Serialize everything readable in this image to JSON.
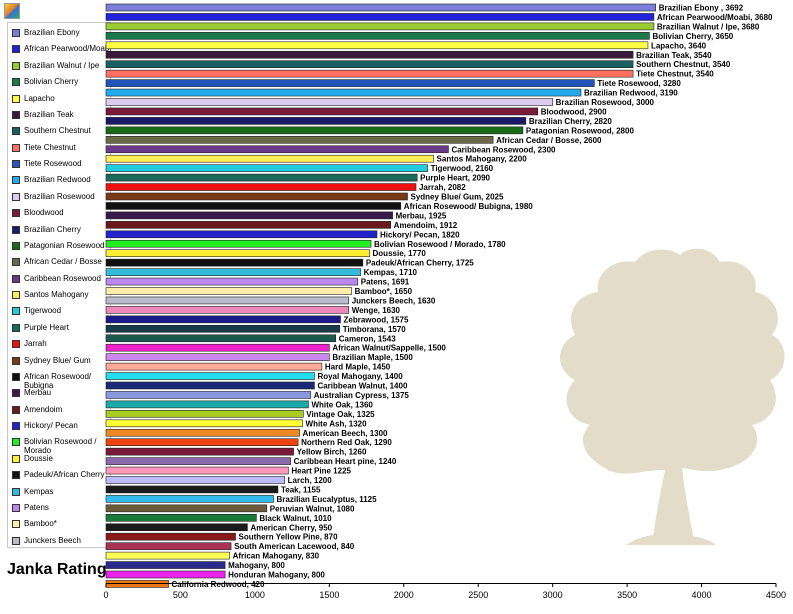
{
  "app": {
    "icon": "chart-app-icon"
  },
  "chart_data": {
    "type": "bar",
    "orientation": "horizontal",
    "title": "Janka Rating",
    "xlim": [
      0,
      4500
    ],
    "x_ticks": [
      0,
      500,
      1000,
      1500,
      2000,
      2500,
      3000,
      3500,
      4000,
      4500
    ],
    "grid": false,
    "legend_position": "left",
    "bars": [
      {
        "name": "Brazilian Ebony",
        "label": "Brazilian Ebony , 3692",
        "value": 3692,
        "color": "#7b7fd8"
      },
      {
        "name": "African Pearwood/Moabi",
        "label": "African Pearwood/Moabi, 3680",
        "value": 3680,
        "color": "#2222dd"
      },
      {
        "name": "Brazilian Walnut / Ipe",
        "label": "Brazilian Walnut / Ipe, 3680",
        "value": 3680,
        "color": "#99cc33"
      },
      {
        "name": "Bolivian Cherry",
        "label": "Bolivian Cherry, 3650",
        "value": 3650,
        "color": "#1a7a4a"
      },
      {
        "name": "Lapacho",
        "label": "Lapacho, 3640",
        "value": 3640,
        "color": "#ffff44"
      },
      {
        "name": "Brazilian Teak",
        "label": "Brazilian Teak, 3540",
        "value": 3540,
        "color": "#3a1a3a"
      },
      {
        "name": "Southern Chestnut",
        "label": "Southern Chestnut, 3540",
        "value": 3540,
        "color": "#1a6060"
      },
      {
        "name": "Tiete Chestnut",
        "label": "Tiete Chestnut, 3540",
        "value": 3540,
        "color": "#ff7060"
      },
      {
        "name": "Tiete Rosewood",
        "label": "Tiete Rosewood, 3280",
        "value": 3280,
        "color": "#2255bb"
      },
      {
        "name": "Brazilian Redwood",
        "label": "Brazilian Redwood, 3190",
        "value": 3190,
        "color": "#22aaee"
      },
      {
        "name": "Brazilian Rosewood",
        "label": "Brazilian Rosewood, 3000",
        "value": 3000,
        "color": "#ddccee"
      },
      {
        "name": "Bloodwood",
        "label": "Bloodwood, 2900",
        "value": 2900,
        "color": "#7a1a3a"
      },
      {
        "name": "Brazilian Cherry",
        "label": "Brazilian Cherry, 2820",
        "value": 2820,
        "color": "#1a1a6a"
      },
      {
        "name": "Patagonian Rosewood",
        "label": "Patagonian Rosewood, 2800",
        "value": 2800,
        "color": "#1a6a1a"
      },
      {
        "name": "African Cedar / Bosse",
        "label": "African Cedar / Bosse, 2600",
        "value": 2600,
        "color": "#6a6a4a"
      },
      {
        "name": "Caribbean Rosewood",
        "label": "Caribbean Rosewood, 2300",
        "value": 2300,
        "color": "#6a3a8a"
      },
      {
        "name": "Santos Mahogany",
        "label": "Santos Mahogany, 2200",
        "value": 2200,
        "color": "#ffee55"
      },
      {
        "name": "Tigerwood",
        "label": "Tigerwood, 2160",
        "value": 2160,
        "color": "#22ccdd"
      },
      {
        "name": "Purple Heart",
        "label": "Purple Heart, 2090",
        "value": 2090,
        "color": "#1a6a5a"
      },
      {
        "name": "Jarrah",
        "label": "Jarrah, 2082",
        "value": 2082,
        "color": "#ee1111"
      },
      {
        "name": "Sydney Blue/ Gum",
        "label": "Sydney Blue/ Gum, 2025",
        "value": 2025,
        "color": "#7a3a1a"
      },
      {
        "name": "African Rosewood/ Bubigna",
        "label": "African Rosewood/ Bubigna, 1980",
        "value": 1980,
        "color": "#111111"
      },
      {
        "name": "Merbau",
        "label": "Merbau, 1925",
        "value": 1925,
        "color": "#3a1a4a"
      },
      {
        "name": "Amendoim",
        "label": "Amendoim, 1912",
        "value": 1912,
        "color": "#6a1a1a"
      },
      {
        "name": "Hickory/ Pecan",
        "label": "Hickory/ Pecan, 1820",
        "value": 1820,
        "color": "#2222cc"
      },
      {
        "name": "Bolivian Rosewood / Morado",
        "label": "Bolivian Rosewood / Morado, 1780",
        "value": 1780,
        "color": "#22ee22"
      },
      {
        "name": "Doussie",
        "label": "Doussie, 1770",
        "value": 1770,
        "color": "#ffee33"
      },
      {
        "name": "Padeuk/African Cherry",
        "label": "Padeuk/African Cherry, 1725",
        "value": 1725,
        "color": "#111111"
      },
      {
        "name": "Kempas",
        "label": "Kempas, 1710",
        "value": 1710,
        "color": "#33bbdd"
      },
      {
        "name": "Patens",
        "label": "Patens, 1691",
        "value": 1691,
        "color": "#bb88ee"
      },
      {
        "name": "Bamboo*",
        "label": "Bamboo*, 1650",
        "value": 1650,
        "color": "#ffeeaa"
      },
      {
        "name": "Junckers Beech",
        "label": "Junckers Beech, 1630",
        "value": 1630,
        "color": "#bbbbcc"
      },
      {
        "name": "Wenge",
        "label": "Wenge, 1630",
        "value": 1630,
        "color": "#ee88bb"
      },
      {
        "name": "Zebrawood",
        "label": "Zebrawood, 1575",
        "value": 1575,
        "color": "#1a1a8a"
      },
      {
        "name": "Timborana",
        "label": "Timborana, 1570",
        "value": 1570,
        "color": "#1a3a4a"
      },
      {
        "name": "Cameron",
        "label": "Cameron, 1543",
        "value": 1543,
        "color": "#1a5a4a"
      },
      {
        "name": "African Walnut/Sappelle",
        "label": "African Walnut/Sappelle, 1500",
        "value": 1500,
        "color": "#ee22cc"
      },
      {
        "name": "Brazilian Maple",
        "label": "Brazilian Maple, 1500",
        "value": 1500,
        "color": "#cc88ee"
      },
      {
        "name": "Hard Maple",
        "label": "Hard Maple, 1450",
        "value": 1450,
        "color": "#ffaa99"
      },
      {
        "name": "Royal Mahogany",
        "label": "Royal Mahogany, 1400",
        "value": 1400,
        "color": "#22ddee"
      },
      {
        "name": "Caribbean Walnut",
        "label": "Caribbean Walnut, 1400",
        "value": 1400,
        "color": "#1a2a7a"
      },
      {
        "name": "Australian Cypress",
        "label": "Australian Cypress, 1375",
        "value": 1375,
        "color": "#8899dd"
      },
      {
        "name": "White Oak",
        "label": "White Oak, 1360",
        "value": 1360,
        "color": "#1aaaaa"
      },
      {
        "name": "Vintage Oak",
        "label": "Vintage Oak, 1325",
        "value": 1325,
        "color": "#aacc22"
      },
      {
        "name": "White Ash",
        "label": "White Ash, 1320",
        "value": 1320,
        "color": "#ffff33"
      },
      {
        "name": "American Beech",
        "label": "American Beech, 1300",
        "value": 1300,
        "color": "#ee8822"
      },
      {
        "name": "Northern Red Oak",
        "label": "Northern Red Oak, 1290",
        "value": 1290,
        "color": "#ee4411"
      },
      {
        "name": "Yellow Birch",
        "label": "Yellow Birch, 1260",
        "value": 1260,
        "color": "#7a1a3a"
      },
      {
        "name": "Caribbean Heart pine",
        "label": "Caribbean Heart pine, 1240",
        "value": 1240,
        "color": "#8a6aaa"
      },
      {
        "name": "Heart Pine",
        "label": "Heart Pine 1225",
        "value": 1225,
        "color": "#ff99bb"
      },
      {
        "name": "Larch",
        "label": "Larch, 1200",
        "value": 1200,
        "color": "#bbbbff"
      },
      {
        "name": "Teak",
        "label": "Teak, 1155",
        "value": 1155,
        "color": "#1a1a1a"
      },
      {
        "name": "Brazilian Eucalyptus",
        "label": "Brazilian Eucalyptus, 1125",
        "value": 1125,
        "color": "#33bbee"
      },
      {
        "name": "Peruvian Walnut",
        "label": "Peruvian Walnut, 1080",
        "value": 1080,
        "color": "#6a5a3a"
      },
      {
        "name": "Black Walnut",
        "label": "Black Walnut, 1010",
        "value": 1010,
        "color": "#1a7a3a"
      },
      {
        "name": "American Cherry",
        "label": "American Cherry, 950",
        "value": 950,
        "color": "#1a1a1a"
      },
      {
        "name": "Southern Yellow Pine",
        "label": "Southern Yellow Pine, 870",
        "value": 870,
        "color": "#8a1a1a"
      },
      {
        "name": "South American Lacewood",
        "label": "South American Lacewood, 840",
        "value": 840,
        "color": "#aa3355"
      },
      {
        "name": "African Mahogany",
        "label": "African Mahogany, 830",
        "value": 830,
        "color": "#ffff55"
      },
      {
        "name": "Mahogany",
        "label": "Mahogany, 800",
        "value": 800,
        "color": "#2a2a8a"
      },
      {
        "name": "Honduran Mahogany",
        "label": "Honduran Mahogany, 800",
        "value": 800,
        "color": "#ee22ee"
      },
      {
        "name": "California Redwood",
        "label": "California Redwood, 420",
        "value": 420,
        "color": "#ee7711"
      }
    ]
  },
  "legend": {
    "items": [
      {
        "label": "Brazilian Ebony",
        "color": "#7b7fd8"
      },
      {
        "label": "African Pearwood/Moabi",
        "color": "#2222dd"
      },
      {
        "label": "Brazilian Walnut / Ipe",
        "color": "#99cc33"
      },
      {
        "label": "Bolivian Cherry",
        "color": "#1a7a4a"
      },
      {
        "label": "Lapacho",
        "color": "#ffff44"
      },
      {
        "label": "Brazilian Teak",
        "color": "#3a1a3a"
      },
      {
        "label": "Southern Chestnut",
        "color": "#1a6060"
      },
      {
        "label": "Tiete Chestnut",
        "color": "#ff7060"
      },
      {
        "label": "Tiete Rosewood",
        "color": "#2255bb"
      },
      {
        "label": "Brazilian Redwood",
        "color": "#22aaee"
      },
      {
        "label": "Brazilian Rosewood",
        "color": "#ddccee"
      },
      {
        "label": "Bloodwood",
        "color": "#7a1a3a"
      },
      {
        "label": "Brazilian Cherry",
        "color": "#1a1a6a"
      },
      {
        "label": "Patagonian Rosewood",
        "color": "#1a6a1a"
      },
      {
        "label": "African Cedar / Bosse",
        "color": "#6a6a4a"
      },
      {
        "label": "Caribbean Rosewood",
        "color": "#6a3a8a"
      },
      {
        "label": "Santos Mahogany",
        "color": "#ffee55"
      },
      {
        "label": "Tigerwood",
        "color": "#22ccdd"
      },
      {
        "label": "Purple Heart",
        "color": "#1a6a5a"
      },
      {
        "label": "Jarrah",
        "color": "#ee1111"
      },
      {
        "label": "Sydney Blue/ Gum",
        "color": "#7a3a1a"
      },
      {
        "label": "African Rosewood/ Bubigna",
        "color": "#111111"
      },
      {
        "label": "Merbau",
        "color": "#3a1a4a"
      },
      {
        "label": "Amendoim",
        "color": "#6a1a1a"
      },
      {
        "label": "Hickory/ Pecan",
        "color": "#2222cc"
      },
      {
        "label": "Bolivian Rosewood / Morado",
        "color": "#22ee22"
      },
      {
        "label": "Doussie",
        "color": "#ffee33"
      },
      {
        "label": "Padeuk/African Cherry",
        "color": "#111111"
      },
      {
        "label": "Kempas",
        "color": "#33bbdd"
      },
      {
        "label": "Patens",
        "color": "#bb88ee"
      },
      {
        "label": "Bamboo*",
        "color": "#ffeeaa"
      },
      {
        "label": "Junckers Beech",
        "color": "#bbbbcc"
      }
    ]
  },
  "watermark": {
    "icon": "oak-tree-icon",
    "color": "#e2dcc8"
  }
}
